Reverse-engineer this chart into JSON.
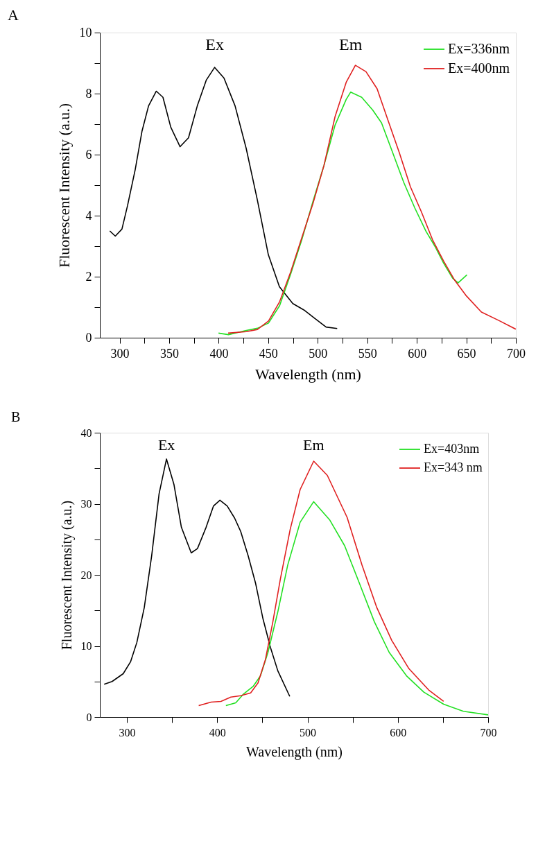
{
  "chart_data": [
    {
      "type": "line",
      "title": "A",
      "xlabel": "Wavelength (nm)",
      "ylabel": "Fluorescent Intensity (a.u.)",
      "xlim": [
        280,
        700
      ],
      "ylim": [
        0,
        10
      ],
      "xticks": [
        300,
        {
          "value": 325,
          "label": null
        },
        350,
        {
          "value": 375,
          "label": null
        },
        400,
        {
          "value": 425,
          "label": null
        },
        450,
        {
          "value": 475,
          "label": null
        },
        500,
        {
          "value": 525,
          "label": null
        },
        550,
        {
          "value": 575,
          "label": null
        },
        600,
        {
          "value": 625,
          "label": null
        },
        650,
        {
          "value": 675,
          "label": null
        },
        700
      ],
      "yticks": [
        0,
        {
          "value": 1,
          "label": null
        },
        2,
        {
          "value": 3,
          "label": null
        },
        4,
        {
          "value": 5,
          "label": null
        },
        6,
        {
          "value": 7,
          "label": null
        },
        8,
        {
          "value": 9,
          "label": null
        },
        10
      ],
      "grid": false,
      "legend": "top right",
      "line_style": "solid",
      "annotations": [
        "Ex",
        "Em"
      ],
      "series": [
        {
          "color": "#000000",
          "x": [
            290,
            295.6,
            302.3,
            307.9,
            315.7,
            322.5,
            329.2,
            337,
            343.7,
            351.6,
            361,
            369.5,
            378.4,
            387.4,
            395.9,
            405.3,
            416.5,
            427.7,
            438.9,
            450.1,
            461.3,
            474.8,
            486,
            497.2,
            508.4,
            519.6
          ],
          "values": [
            3.5,
            3.33,
            3.56,
            4.32,
            5.51,
            6.76,
            7.6,
            8.08,
            7.88,
            6.9,
            6.26,
            6.55,
            7.6,
            8.44,
            8.86,
            8.51,
            7.6,
            6.21,
            4.53,
            2.72,
            1.67,
            1.12,
            0.91,
            0.63,
            0.35,
            0.3
          ]
        },
        {
          "name": "Ex=336nm",
          "color": "#22e022",
          "x": [
            399.8,
            409.9,
            427.9,
            439.1,
            450.3,
            461.5,
            472.7,
            483.9,
            495.1,
            506.3,
            517.5,
            528.7,
            533.2,
            544.3,
            555.5,
            564.4,
            575.6,
            586.8,
            598,
            609.2,
            618.2,
            627.1,
            636.1,
            641.7,
            650.6
          ],
          "values": [
            0.15,
            0.1,
            0.24,
            0.31,
            0.48,
            1.05,
            2.09,
            3.21,
            4.46,
            5.65,
            6.97,
            7.81,
            8.05,
            7.88,
            7.46,
            7.04,
            6.07,
            5.09,
            4.25,
            3.49,
            3.0,
            2.44,
            1.95,
            1.8,
            2.06
          ]
        },
        {
          "name": "Ex=400nm",
          "color": "#e02020",
          "x": [
            409.5,
            427.9,
            439.1,
            450.3,
            461.5,
            472.7,
            483.9,
            495.1,
            506.3,
            517.5,
            528.7,
            538,
            548.7,
            559.9,
            571.1,
            582.3,
            593.5,
            604.7,
            615.9,
            627.1,
            638.3,
            649.5,
            665.2,
            683.1,
            699.9
          ],
          "values": [
            0.15,
            0.2,
            0.27,
            0.55,
            1.18,
            2.16,
            3.28,
            4.39,
            5.65,
            7.25,
            8.37,
            8.93,
            8.72,
            8.16,
            7.11,
            6.07,
            4.95,
            4.12,
            3.21,
            2.51,
            1.88,
            1.39,
            0.84,
            0.56,
            0.28
          ]
        }
      ]
    },
    {
      "type": "line",
      "title": "B",
      "xlabel": "Wavelength (nm)",
      "ylabel": "Fluorescent Intensity (a.u.)",
      "xlim": [
        270,
        700
      ],
      "ylim": [
        0,
        40
      ],
      "xticks": [
        300,
        {
          "value": 350,
          "label": null
        },
        400,
        {
          "value": 450,
          "label": null
        },
        500,
        {
          "value": 550,
          "label": null
        },
        600,
        {
          "value": 650,
          "label": null
        },
        700
      ],
      "yticks": [
        0,
        {
          "value": 5,
          "label": null
        },
        10,
        {
          "value": 15,
          "label": null
        },
        20,
        {
          "value": 25,
          "label": null
        },
        30,
        {
          "value": 35,
          "label": null
        },
        40
      ],
      "grid": false,
      "legend": "top right",
      "line_style": "solid",
      "annotations": [
        "Ex",
        "Em"
      ],
      "series": [
        {
          "color": "#000000",
          "x": [
            274.8,
            283.6,
            295.9,
            304.1,
            311,
            319.2,
            327.4,
            335.6,
            343.8,
            352.1,
            360.3,
            371.2,
            378.1,
            387.7,
            395.9,
            403,
            411,
            419.2,
            426,
            434.2,
            442.5,
            450.7,
            458.9,
            467.1,
            480.3
          ],
          "values": [
            4.6,
            5.0,
            6.1,
            7.8,
            10.5,
            15.4,
            22.7,
            31.4,
            36.3,
            32.7,
            26.7,
            23.1,
            23.7,
            26.7,
            29.7,
            30.5,
            29.7,
            28.0,
            26.1,
            22.7,
            18.8,
            13.8,
            9.8,
            6.5,
            2.9
          ]
        },
        {
          "name": "Ex=403nm",
          "color": "#22e022",
          "x": [
            409.6,
            420.5,
            428.8,
            439.7,
            447.9,
            456.2,
            467.1,
            478.1,
            491.8,
            506.8,
            524.7,
            541.1,
            557.5,
            574,
            590.4,
            609.6,
            628.8,
            650.7,
            672.6,
            700
          ],
          "values": [
            1.6,
            2.0,
            3.2,
            4.3,
            5.8,
            9.1,
            14.8,
            21.4,
            27.4,
            30.3,
            27.7,
            24.1,
            18.8,
            13.4,
            9.1,
            5.8,
            3.5,
            1.8,
            0.8,
            0.3
          ]
        },
        {
          "name": "Ex=343 nm",
          "color": "#e02020",
          "x": [
            379.5,
            393.2,
            404.1,
            415.1,
            426,
            437,
            445.2,
            453.4,
            461.6,
            469.9,
            480.8,
            491.8,
            506.8,
            521.9,
            543.8,
            560.3,
            576.7,
            593.2,
            612.3,
            634.2,
            650.7
          ],
          "values": [
            1.6,
            2.1,
            2.2,
            2.8,
            3.0,
            3.4,
            4.8,
            8.1,
            13.4,
            19.4,
            26.4,
            32.0,
            36.0,
            34.0,
            28.1,
            21.4,
            15.4,
            10.8,
            6.8,
            3.8,
            2.2
          ]
        }
      ]
    }
  ]
}
